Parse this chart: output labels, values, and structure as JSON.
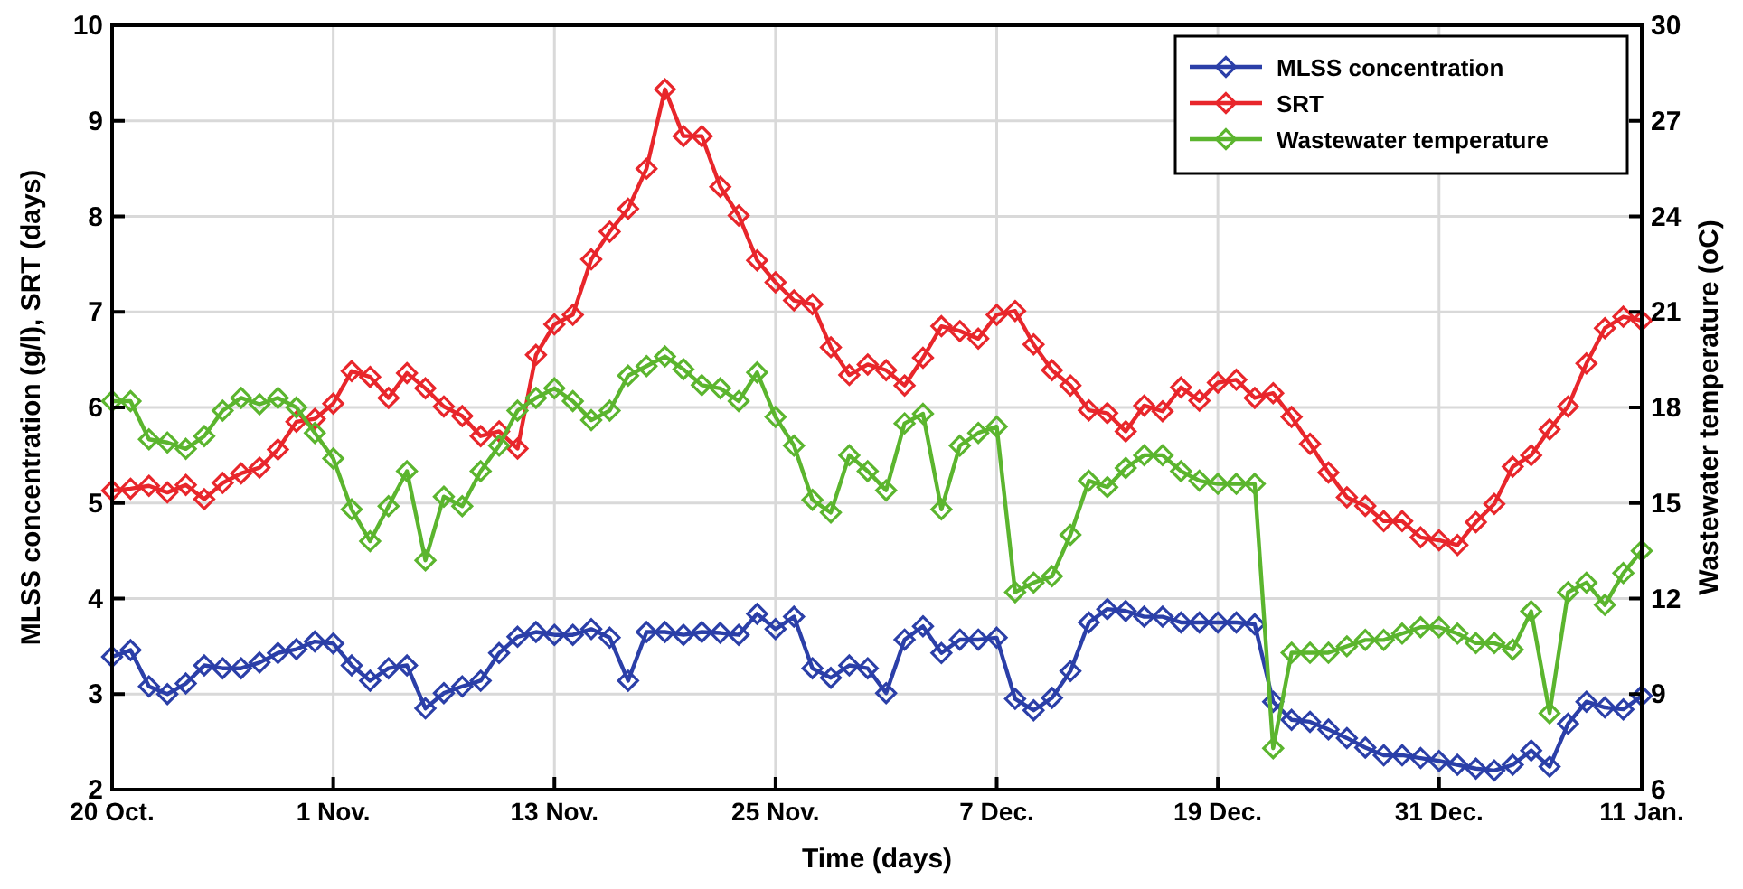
{
  "chart_data": {
    "type": "line",
    "xlabel": "Time (days)",
    "ylabel": "MLSS concentration (g/l), SRT (days)",
    "y2label": "Wastewater temperature (oC)",
    "categories": [
      "20 Oct.",
      null,
      null,
      null,
      null,
      null,
      null,
      null,
      null,
      null,
      null,
      null,
      "1 Nov.",
      null,
      null,
      null,
      null,
      null,
      null,
      null,
      null,
      null,
      null,
      null,
      "13 Nov.",
      null,
      null,
      null,
      null,
      null,
      null,
      null,
      null,
      null,
      null,
      null,
      "25 Nov.",
      null,
      null,
      null,
      null,
      null,
      null,
      null,
      null,
      null,
      null,
      null,
      "7 Dec.",
      null,
      null,
      null,
      null,
      null,
      null,
      null,
      null,
      null,
      null,
      null,
      "19 Dec.",
      null,
      null,
      null,
      null,
      null,
      null,
      null,
      null,
      null,
      null,
      null,
      "31 Dec.",
      null,
      null,
      null,
      null,
      null,
      null,
      null,
      null,
      null,
      null,
      "11 Jan."
    ],
    "series": [
      {
        "name": "MLSS concentration",
        "color": "#2b3fa8",
        "values": [
          3.39,
          3.46,
          3.08,
          3.0,
          3.11,
          3.3,
          3.27,
          3.27,
          3.33,
          3.43,
          3.47,
          3.55,
          3.53,
          3.3,
          3.14,
          3.27,
          3.3,
          2.85,
          3.01,
          3.08,
          3.14,
          3.43,
          3.6,
          3.65,
          3.62,
          3.62,
          3.68,
          3.59,
          3.14,
          3.65,
          3.65,
          3.62,
          3.65,
          3.64,
          3.62,
          3.84,
          3.68,
          3.81,
          3.27,
          3.17,
          3.3,
          3.27,
          3.01,
          3.57,
          3.71,
          3.43,
          3.57,
          3.57,
          3.59,
          2.95,
          2.83,
          2.96,
          3.24,
          3.75,
          3.89,
          3.87,
          3.81,
          3.81,
          3.75,
          3.75,
          3.75,
          3.75,
          3.73,
          2.92,
          2.73,
          2.71,
          2.63,
          2.54,
          2.44,
          2.36,
          2.36,
          2.33,
          2.3,
          2.26,
          2.22,
          2.2,
          2.26,
          2.41,
          2.24,
          2.69,
          2.92,
          2.86,
          2.84,
          2.98
        ]
      },
      {
        "name": "SRT",
        "color": "#e8262b",
        "values": [
          5.13,
          5.15,
          5.18,
          5.11,
          5.19,
          5.04,
          5.21,
          5.31,
          5.37,
          5.56,
          5.85,
          5.88,
          6.04,
          6.38,
          6.32,
          6.1,
          6.36,
          6.2,
          6.01,
          5.91,
          5.7,
          5.75,
          5.57,
          6.55,
          6.87,
          6.97,
          7.55,
          7.84,
          8.08,
          8.5,
          9.33,
          8.84,
          8.84,
          8.31,
          8.01,
          7.54,
          7.31,
          7.12,
          7.08,
          6.63,
          6.34,
          6.45,
          6.39,
          6.23,
          6.52,
          6.85,
          6.8,
          6.72,
          6.97,
          7.01,
          6.66,
          6.39,
          6.23,
          5.97,
          5.94,
          5.75,
          6.02,
          5.96,
          6.21,
          6.07,
          6.26,
          6.29,
          6.1,
          6.15,
          5.9,
          5.62,
          5.32,
          5.06,
          4.97,
          4.81,
          4.81,
          4.64,
          4.61,
          4.56,
          4.8,
          4.99,
          5.38,
          5.5,
          5.77,
          6.01,
          6.46,
          6.83,
          6.95,
          6.91
        ]
      },
      {
        "name": "Wastewater temperature",
        "color": "#5bb52e",
        "axis": "y2",
        "values": [
          18.2,
          18.2,
          17.0,
          16.9,
          16.7,
          17.1,
          17.9,
          18.3,
          18.1,
          18.3,
          18.0,
          17.2,
          16.4,
          14.8,
          13.8,
          14.9,
          16.0,
          13.2,
          15.2,
          14.9,
          16.0,
          16.8,
          17.9,
          18.3,
          18.6,
          18.2,
          17.6,
          17.9,
          19.0,
          19.3,
          19.6,
          19.2,
          18.7,
          18.6,
          18.2,
          19.1,
          17.7,
          16.8,
          15.1,
          14.7,
          16.5,
          16.0,
          15.4,
          17.5,
          17.8,
          14.8,
          16.8,
          17.2,
          17.4,
          12.2,
          12.5,
          12.7,
          14.0,
          15.7,
          15.5,
          16.1,
          16.5,
          16.5,
          16.0,
          15.7,
          15.6,
          15.6,
          15.6,
          7.3,
          10.3,
          10.3,
          10.3,
          10.5,
          10.7,
          10.7,
          10.9,
          11.1,
          11.1,
          10.9,
          10.6,
          10.6,
          10.4,
          11.6,
          8.4,
          12.2,
          12.5,
          11.8,
          12.8,
          13.5
        ]
      }
    ],
    "ylim": [
      2,
      10
    ],
    "yticks": [
      2,
      3,
      4,
      5,
      6,
      7,
      8,
      9,
      10
    ],
    "y2lim": [
      6,
      30
    ],
    "y2ticks": [
      6,
      9,
      12,
      15,
      18,
      21,
      24,
      27,
      30
    ],
    "grid": true,
    "legend": "top right",
    "marker": "diamond",
    "line_style": "solid"
  }
}
